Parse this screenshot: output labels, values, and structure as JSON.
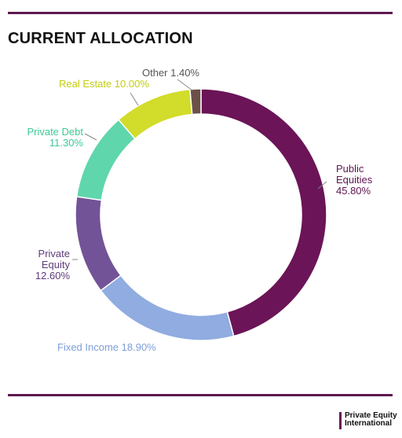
{
  "header": {
    "title": "CURRENT ALLOCATION"
  },
  "logo": {
    "line1": "Private Equity",
    "line2": "International"
  },
  "chart_data": {
    "type": "pie",
    "donut": true,
    "title": "CURRENT ALLOCATION",
    "legend": "none",
    "series": [
      {
        "values": [
          45.8,
          18.9,
          12.6,
          11.3,
          10.0,
          1.4
        ]
      }
    ],
    "categories": [
      "Public Equities",
      "Fixed Income",
      "Private Equity",
      "Private Debt",
      "Real Estate",
      "Other"
    ],
    "slices": [
      {
        "label": "Public Equities",
        "value": 45.8,
        "value_label": "45.80%",
        "color": "#6b1457"
      },
      {
        "label": "Fixed Income",
        "value": 18.9,
        "value_label": "18.90%",
        "color": "#90ace0"
      },
      {
        "label": "Private Equity",
        "value": 12.6,
        "value_label": "12.60%",
        "color": "#735397"
      },
      {
        "label": "Private Debt",
        "value": 11.3,
        "value_label": "11.30%",
        "color": "#5fd6ab"
      },
      {
        "label": "Real Estate",
        "value": 10.0,
        "value_label": "10.00%",
        "color": "#d2dc2a"
      },
      {
        "label": "Other",
        "value": 1.4,
        "value_label": "1.40%",
        "color": "#6a5048"
      }
    ],
    "label_colors": {
      "Public Equities": "#5e1450",
      "Fixed Income": "#7e9ed8",
      "Private Equity": "#5e3b7c",
      "Private Debt": "#3fc896",
      "Real Estate": "#c2cc10",
      "Other": "#555555"
    }
  }
}
